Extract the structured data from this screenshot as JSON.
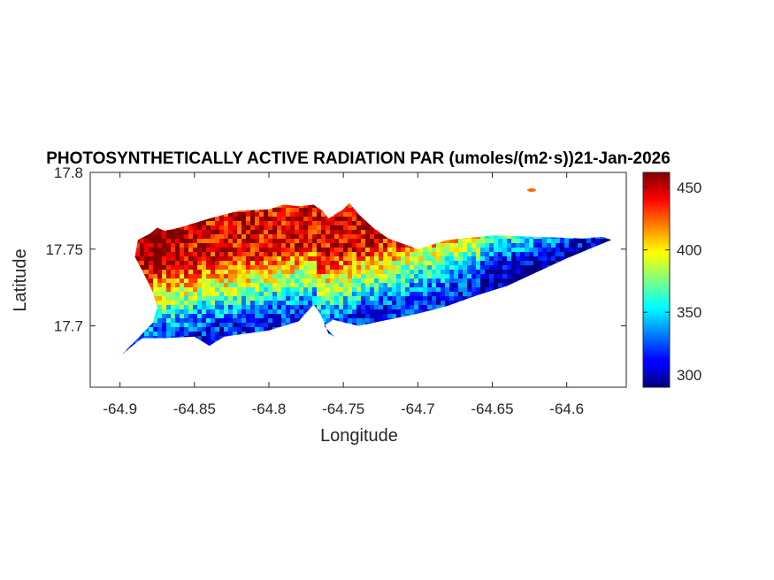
{
  "chart_data": {
    "type": "heatmap",
    "title": "PHOTOSYNTHETICALLY ACTIVE RADIATION PAR (umoles/(m2·s))21-Jan-2026",
    "xlabel": "Longitude",
    "ylabel": "Latitude",
    "xlim": [
      -64.92,
      -64.56
    ],
    "ylim": [
      17.66,
      17.8
    ],
    "xticks": [
      -64.9,
      -64.85,
      -64.8,
      -64.75,
      -64.7,
      -64.65,
      -64.6
    ],
    "xtick_labels": [
      "-64.9",
      "-64.85",
      "-64.8",
      "-64.75",
      "-64.7",
      "-64.65",
      "-64.6"
    ],
    "yticks": [
      17.7,
      17.75,
      17.8
    ],
    "ytick_labels": [
      "17.7",
      "17.75",
      "17.8"
    ],
    "colorbar": {
      "range": [
        290,
        462
      ],
      "ticks": [
        300,
        350,
        400,
        450
      ],
      "tick_labels": [
        "300",
        "350",
        "400",
        "450"
      ],
      "colormap": "jet"
    },
    "grid": false,
    "island_outline": [
      [
        -64.9,
        17.68
      ],
      [
        -64.893,
        17.686
      ],
      [
        -64.885,
        17.692
      ],
      [
        -64.87,
        17.692
      ],
      [
        -64.85,
        17.693
      ],
      [
        -64.84,
        17.687
      ],
      [
        -64.83,
        17.693
      ],
      [
        -64.8,
        17.697
      ],
      [
        -64.78,
        17.703
      ],
      [
        -64.77,
        17.714
      ],
      [
        -64.765,
        17.707
      ],
      [
        -64.76,
        17.695
      ],
      [
        -64.756,
        17.693
      ],
      [
        -64.763,
        17.7
      ],
      [
        -64.757,
        17.704
      ],
      [
        -64.74,
        17.7
      ],
      [
        -64.72,
        17.704
      ],
      [
        -64.7,
        17.708
      ],
      [
        -64.68,
        17.713
      ],
      [
        -64.66,
        17.72
      ],
      [
        -64.64,
        17.726
      ],
      [
        -64.62,
        17.735
      ],
      [
        -64.6,
        17.744
      ],
      [
        -64.58,
        17.752
      ],
      [
        -64.57,
        17.756
      ],
      [
        -64.576,
        17.758
      ],
      [
        -64.59,
        17.757
      ],
      [
        -64.62,
        17.758
      ],
      [
        -64.65,
        17.759
      ],
      [
        -64.68,
        17.756
      ],
      [
        -64.7,
        17.75
      ],
      [
        -64.72,
        17.757
      ],
      [
        -64.73,
        17.764
      ],
      [
        -64.74,
        17.773
      ],
      [
        -64.746,
        17.78
      ],
      [
        -64.75,
        17.776
      ],
      [
        -64.76,
        17.77
      ],
      [
        -64.764,
        17.775
      ],
      [
        -64.77,
        17.779
      ],
      [
        -64.78,
        17.778
      ],
      [
        -64.79,
        17.779
      ],
      [
        -64.8,
        17.776
      ],
      [
        -64.82,
        17.775
      ],
      [
        -64.84,
        17.77
      ],
      [
        -64.86,
        17.764
      ],
      [
        -64.87,
        17.762
      ],
      [
        -64.875,
        17.764
      ],
      [
        -64.88,
        17.76
      ],
      [
        -64.888,
        17.756
      ],
      [
        -64.89,
        17.745
      ],
      [
        -64.884,
        17.734
      ],
      [
        -64.878,
        17.722
      ],
      [
        -64.875,
        17.712
      ],
      [
        -64.878,
        17.702
      ],
      [
        -64.888,
        17.692
      ],
      [
        -64.9,
        17.68
      ]
    ],
    "value_pattern": {
      "north_max": 445,
      "south_min": 315,
      "northwest_hotspot": [
        -64.876,
        17.756,
        460
      ]
    }
  }
}
